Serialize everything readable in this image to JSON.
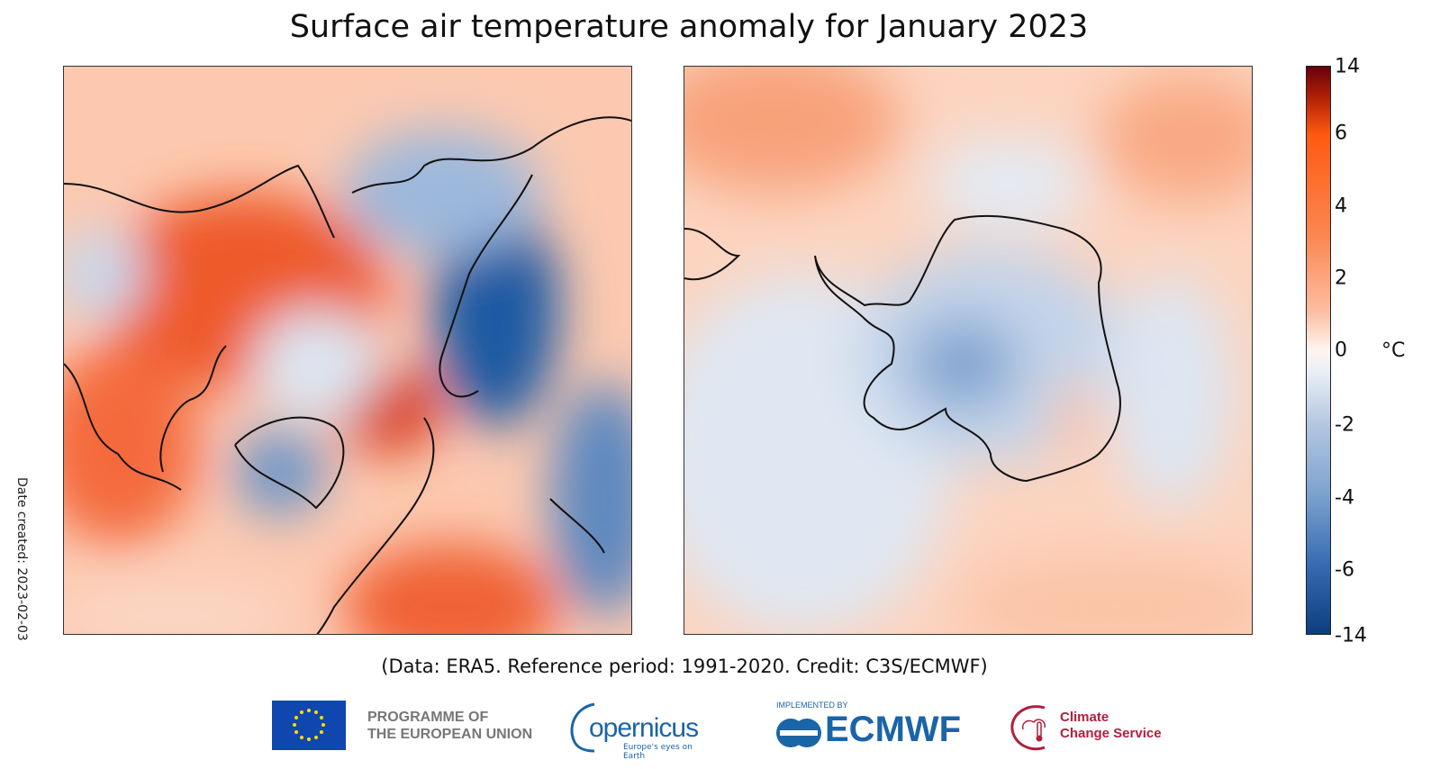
{
  "title": "Surface air temperature anomaly for January 2023",
  "date_created": "Date created: 2023-02-03",
  "credit": "(Data: ERA5.  Reference period: 1991-2020.  Credit: C3S/ECMWF)",
  "maps": [
    {
      "region": "Northern hemisphere (Arctic polar view)"
    },
    {
      "region": "Southern hemisphere (Antarctic polar view)"
    }
  ],
  "colorbar": {
    "unit": "°C",
    "ticks": [
      "14",
      "6",
      "4",
      "2",
      "0",
      "-2",
      "-4",
      "-6",
      "-14"
    ],
    "range": [
      -14,
      14
    ],
    "colors": {
      "max": "#67000d",
      "warm": "#ff5a10",
      "zero": "#fff5ee",
      "cool": "#7fa3cf",
      "min": "#0c3d80"
    }
  },
  "logos": {
    "eu": "PROGRAMME OF THE EUROPEAN UNION",
    "eu_line1": "PROGRAMME OF",
    "eu_line2": "THE EUROPEAN UNION",
    "copernicus": "opernicus",
    "copernicus_tagline": "Europe's eyes on Earth",
    "ecmwf_implemented": "IMPLEMENTED BY",
    "ecmwf": "ECMWF",
    "c3s_line1": "Climate",
    "c3s_line2": "Change Service"
  }
}
